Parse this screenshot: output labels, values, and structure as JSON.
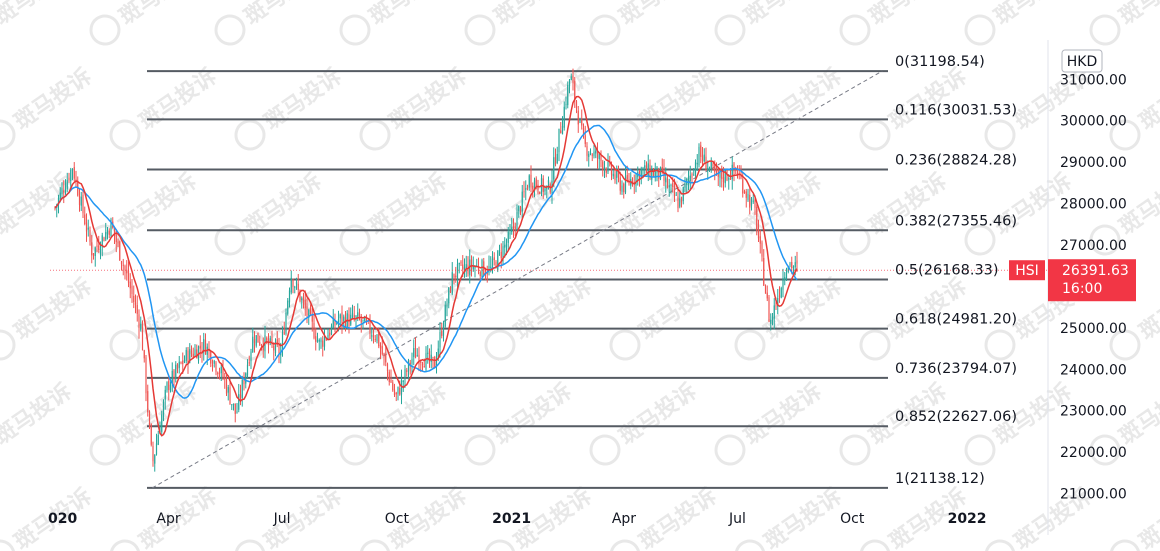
{
  "chart_data": {
    "type": "candlestick",
    "symbol": "HSI",
    "currency": "HKD",
    "last_price": "26391.63",
    "countdown": "16:00",
    "ylim": [
      20900,
      31500
    ],
    "y_ticks": [
      "21000.00",
      "22000.00",
      "23000.00",
      "24000.00",
      "25000.00",
      "26000.00",
      "27000.00",
      "28000.00",
      "29000.00",
      "30000.00",
      "31000.00"
    ],
    "x_ticks": [
      {
        "label": "020",
        "date": "2020-01-01",
        "year": true
      },
      {
        "label": "Apr",
        "date": "2020-04-01",
        "year": false
      },
      {
        "label": "Jul",
        "date": "2020-07-01",
        "year": false
      },
      {
        "label": "Oct",
        "date": "2020-10-01",
        "year": false
      },
      {
        "label": "2021",
        "date": "2021-01-01",
        "year": true
      },
      {
        "label": "Apr",
        "date": "2021-04-01",
        "year": false
      },
      {
        "label": "Jul",
        "date": "2021-07-01",
        "year": false
      },
      {
        "label": "Oct",
        "date": "2021-10-01",
        "year": false
      },
      {
        "label": "2022",
        "date": "2022-01-01",
        "year": true
      }
    ],
    "fib_levels": [
      {
        "ratio": 0,
        "value": 31198.54,
        "label": "0(31198.54)"
      },
      {
        "ratio": 0.116,
        "value": 30031.53,
        "label": "0.116(30031.53)"
      },
      {
        "ratio": 0.236,
        "value": 28824.28,
        "label": "0.236(28824.28)"
      },
      {
        "ratio": 0.382,
        "value": 27355.46,
        "label": "0.382(27355.46)"
      },
      {
        "ratio": 0.5,
        "value": 26168.33,
        "label": "0.5(26168.33)"
      },
      {
        "ratio": 0.618,
        "value": 24981.2,
        "label": "0.618(24981.20)"
      },
      {
        "ratio": 0.736,
        "value": 23794.07,
        "label": "0.736(23794.07)"
      },
      {
        "ratio": 0.852,
        "value": 22627.06,
        "label": "0.852(22627.06)"
      },
      {
        "ratio": 1,
        "value": 21138.12,
        "label": "1(21138.12)"
      }
    ],
    "fib_range": {
      "start_date": "2020-03-19",
      "end_date": "2021-10-25"
    },
    "trend_line": {
      "from": {
        "date": "2020-03-19",
        "value": 21138.12
      },
      "to": {
        "date": "2021-10-25",
        "value": 31198.54
      }
    },
    "price_series": [
      {
        "date": "2020-01-01",
        "close": 27900
      },
      {
        "date": "2020-01-15",
        "close": 28900
      },
      {
        "date": "2020-01-31",
        "close": 26800
      },
      {
        "date": "2020-02-15",
        "close": 27500
      },
      {
        "date": "2020-02-29",
        "close": 26100
      },
      {
        "date": "2020-03-10",
        "close": 25000
      },
      {
        "date": "2020-03-19",
        "close": 21700
      },
      {
        "date": "2020-03-31",
        "close": 23600
      },
      {
        "date": "2020-04-15",
        "close": 24300
      },
      {
        "date": "2020-04-30",
        "close": 24600
      },
      {
        "date": "2020-05-15",
        "close": 23800
      },
      {
        "date": "2020-05-25",
        "close": 22900
      },
      {
        "date": "2020-06-08",
        "close": 24800
      },
      {
        "date": "2020-06-30",
        "close": 24400
      },
      {
        "date": "2020-07-08",
        "close": 26300
      },
      {
        "date": "2020-07-31",
        "close": 24600
      },
      {
        "date": "2020-08-15",
        "close": 25200
      },
      {
        "date": "2020-08-31",
        "close": 25200
      },
      {
        "date": "2020-09-15",
        "close": 24800
      },
      {
        "date": "2020-09-30",
        "close": 23300
      },
      {
        "date": "2020-10-15",
        "close": 24400
      },
      {
        "date": "2020-10-31",
        "close": 24100
      },
      {
        "date": "2020-11-15",
        "close": 26300
      },
      {
        "date": "2020-11-30",
        "close": 26500
      },
      {
        "date": "2020-12-15",
        "close": 26400
      },
      {
        "date": "2020-12-31",
        "close": 27200
      },
      {
        "date": "2021-01-15",
        "close": 28600
      },
      {
        "date": "2021-01-31",
        "close": 28300
      },
      {
        "date": "2021-02-17",
        "close": 31100
      },
      {
        "date": "2021-02-28",
        "close": 29400
      },
      {
        "date": "2021-03-15",
        "close": 29000
      },
      {
        "date": "2021-03-31",
        "close": 28400
      },
      {
        "date": "2021-04-15",
        "close": 28800
      },
      {
        "date": "2021-04-30",
        "close": 28700
      },
      {
        "date": "2021-05-15",
        "close": 28000
      },
      {
        "date": "2021-05-31",
        "close": 29200
      },
      {
        "date": "2021-06-15",
        "close": 28600
      },
      {
        "date": "2021-06-30",
        "close": 28800
      },
      {
        "date": "2021-07-15",
        "close": 27800
      },
      {
        "date": "2021-07-27",
        "close": 25100
      },
      {
        "date": "2021-08-10",
        "close": 26600
      },
      {
        "date": "2021-08-19",
        "close": 26391.63
      }
    ],
    "ma_fast_color": "#e53935",
    "ma_slow_color": "#2196f3",
    "up_color": "#26a69a",
    "down_color": "#ef5350",
    "fib_line_color": "#555b63",
    "price_badge_color": "#f23645"
  },
  "watermark": "斑马投诉"
}
